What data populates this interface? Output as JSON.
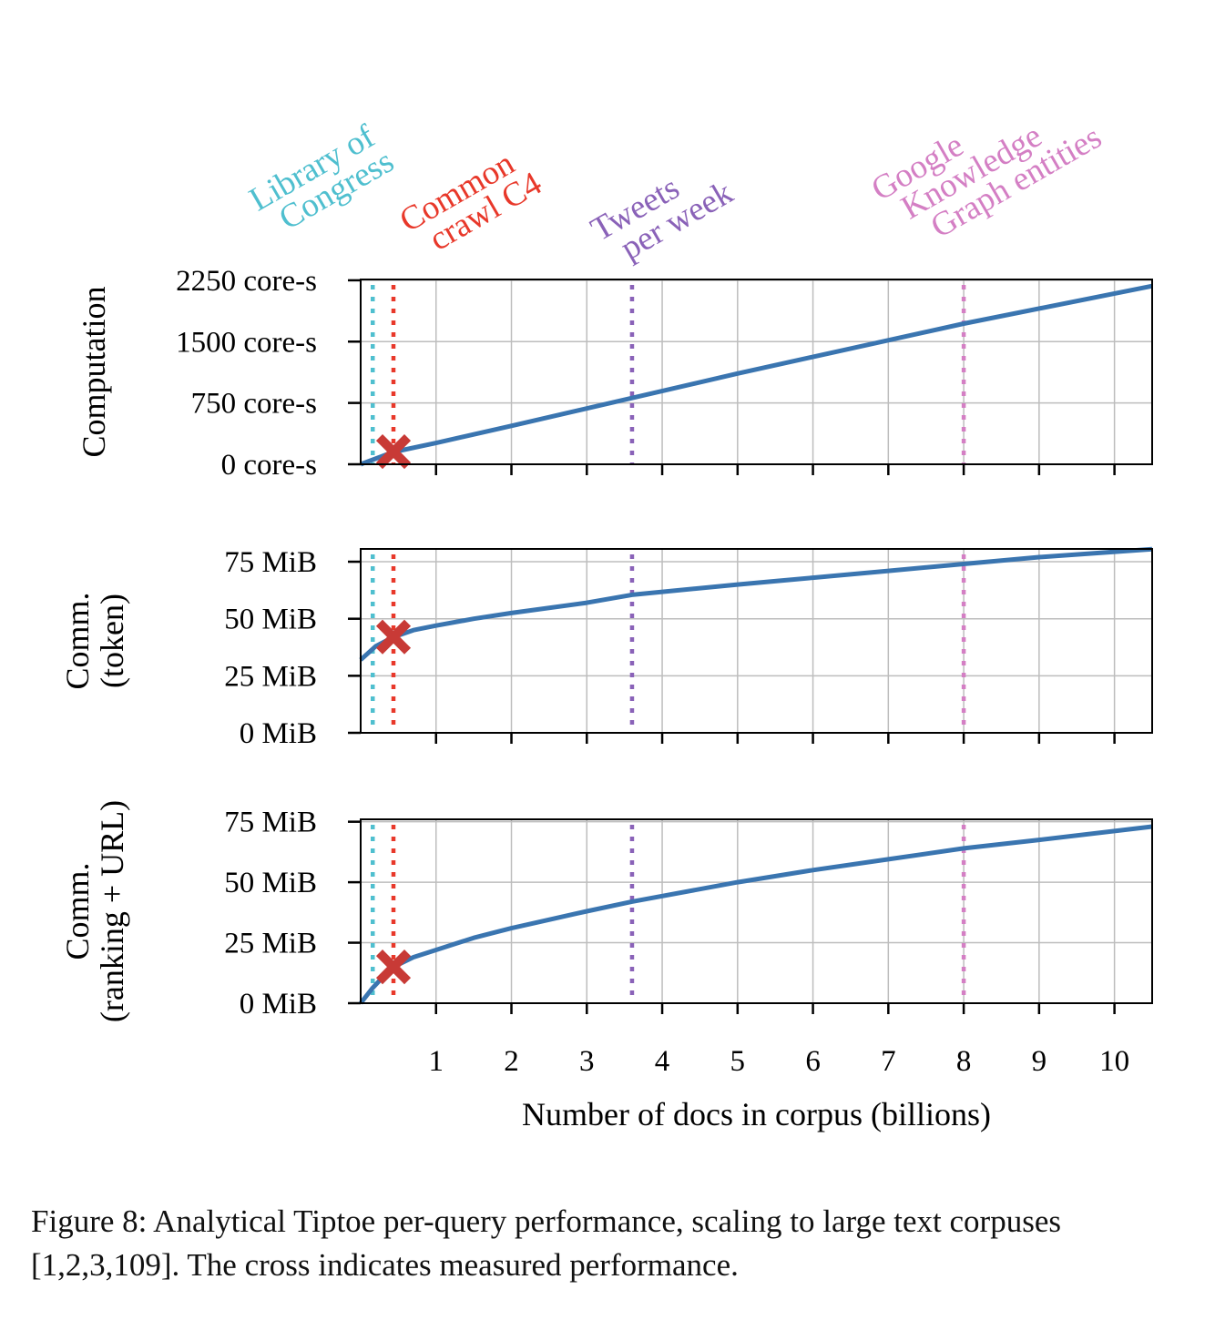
{
  "chart_data": [
    {
      "type": "line",
      "ylabel": "Computation",
      "xlim": [
        0,
        10.5
      ],
      "ylim": [
        0,
        2260
      ],
      "yticks": [
        0,
        750,
        1500,
        2250
      ],
      "ytick_labels": [
        "0 core-s",
        "750 core-s",
        "1500 core-s",
        "2250 core-s"
      ],
      "grid": true,
      "series": [
        {
          "x": [
            0,
            0.435,
            1,
            2,
            3.6,
            5,
            8,
            10.5
          ],
          "y": [
            0,
            150,
            260,
            470,
            810,
            1110,
            1720,
            2180
          ]
        }
      ],
      "measured": {
        "x": 0.435,
        "y": 155
      }
    },
    {
      "type": "line",
      "ylabel": "Comm.\n(token)",
      "ylabel_lines": [
        "Comm.",
        "(token)"
      ],
      "xlim": [
        0,
        10.5
      ],
      "ylim": [
        0,
        80.6
      ],
      "yticks": [
        0,
        25,
        50,
        75
      ],
      "ytick_labels": [
        "0 MiB",
        "25 MiB",
        "50 MiB",
        "75 MiB"
      ],
      "grid": true,
      "series": [
        {
          "x": [
            0,
            0.2,
            0.435,
            0.7,
            1,
            1.5,
            2,
            3,
            3.6,
            5,
            6,
            7,
            8,
            9,
            10.5
          ],
          "y": [
            32,
            38,
            42,
            45,
            47,
            50,
            52.5,
            57,
            60.5,
            65,
            68,
            71,
            74,
            77,
            80.5
          ]
        }
      ],
      "measured": {
        "x": 0.435,
        "y": 42
      }
    },
    {
      "type": "line",
      "ylabel": "Comm.\n(ranking + URL)",
      "ylabel_lines": [
        "Comm.",
        "(ranking + URL)"
      ],
      "xlim": [
        0,
        10.5
      ],
      "ylim": [
        0,
        76
      ],
      "yticks": [
        0,
        25,
        50,
        75
      ],
      "ytick_labels": [
        "0 MiB",
        "25 MiB",
        "50 MiB",
        "75 MiB"
      ],
      "grid": true,
      "xticks": [
        1,
        2,
        3,
        4,
        5,
        6,
        7,
        8,
        9,
        10
      ],
      "xtick_labels": [
        "1",
        "2",
        "3",
        "4",
        "5",
        "6",
        "7",
        "8",
        "9",
        "10"
      ],
      "xlabel": "Number of docs in corpus (billions)",
      "series": [
        {
          "x": [
            0,
            0.15,
            0.3,
            0.435,
            0.7,
            1,
            1.5,
            2,
            3,
            3.6,
            5,
            6,
            7,
            8,
            9,
            10.5
          ],
          "y": [
            0,
            6,
            11,
            15,
            19,
            22,
            27,
            31,
            38,
            42,
            50,
            55,
            59.5,
            64,
            67.5,
            73
          ]
        }
      ],
      "measured": {
        "x": 0.435,
        "y": 15
      }
    }
  ],
  "reference_lines": [
    {
      "label_lines": [
        "Library of",
        "Congress"
      ],
      "x": 0.16,
      "color": "#4fbfcf"
    },
    {
      "label_lines": [
        "Common",
        "crawl C4"
      ],
      "x": 0.435,
      "color": "#e8382a"
    },
    {
      "label_lines": [
        "Tweets",
        "per week"
      ],
      "x": 3.6,
      "color": "#8a62b8"
    },
    {
      "label_lines": [
        "Google",
        "Knowledge",
        "Graph entities"
      ],
      "x": 8.0,
      "color": "#d47fc4"
    }
  ],
  "colors": {
    "line": "#3a75b0",
    "cross": "#c83a36",
    "grid": "#bdbdbd"
  },
  "caption": "Figure 8: Analytical Tiptoe per-query performance, scaling to large text corpuses [1,2,3,109]. The cross indicates measured performance."
}
